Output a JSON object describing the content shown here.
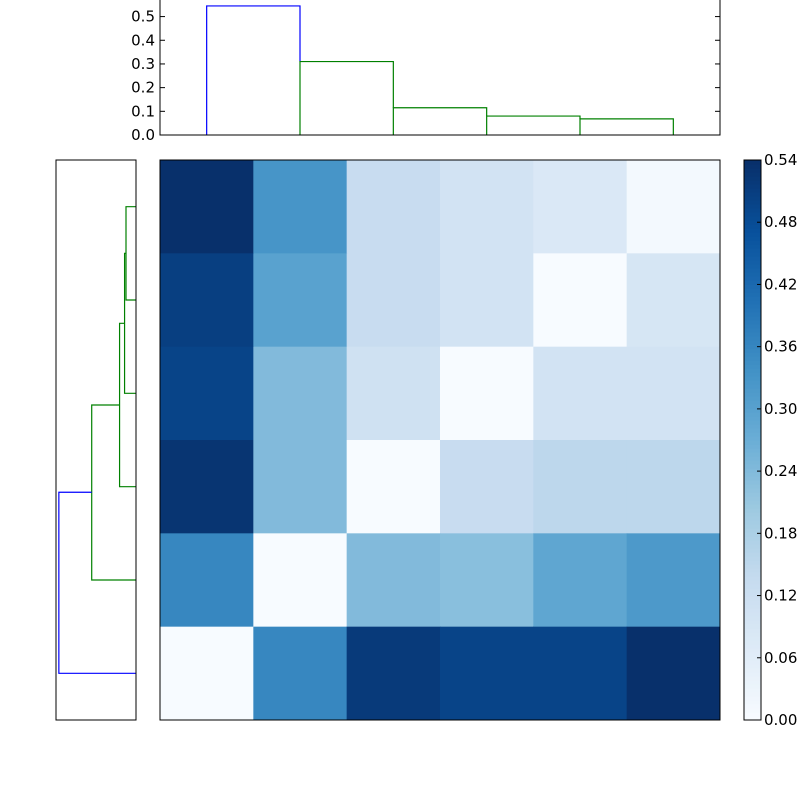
{
  "chart_data": {
    "type": "heatmap",
    "title": "",
    "xlabel": "",
    "ylabel": "",
    "colormap": "Blues",
    "vmin": 0.0,
    "vmax": 0.54,
    "matrix": [
      [
        0.54,
        0.33,
        0.13,
        0.1,
        0.08,
        0.01
      ],
      [
        0.51,
        0.3,
        0.13,
        0.1,
        0.0,
        0.09
      ],
      [
        0.5,
        0.24,
        0.11,
        0.0,
        0.1,
        0.1
      ],
      [
        0.53,
        0.24,
        0.0,
        0.13,
        0.15,
        0.15
      ],
      [
        0.36,
        0.0,
        0.24,
        0.23,
        0.29,
        0.32
      ],
      [
        0.0,
        0.36,
        0.52,
        0.5,
        0.5,
        0.54
      ]
    ],
    "colorbar": {
      "ticks": [
        0.0,
        0.06,
        0.12,
        0.18,
        0.24,
        0.3,
        0.36,
        0.42,
        0.48,
        0.54
      ],
      "tick_labels": [
        "0.00",
        "0.06",
        "0.12",
        "0.18",
        "0.24",
        "0.30",
        "0.36",
        "0.42",
        "0.48",
        "0.54"
      ]
    },
    "top_dendrogram": {
      "ylim": [
        0,
        0.57
      ],
      "yticks": [
        0.0,
        0.1,
        0.2,
        0.3,
        0.4,
        0.5
      ],
      "ytick_labels": [
        "0.0",
        "0.1",
        "0.2",
        "0.3",
        "0.4",
        "0.5"
      ],
      "links": [
        {
          "left": 0,
          "right": 1,
          "height": 0.545,
          "left_child_height": 0.0,
          "right_child_height": 0.31,
          "color": "#0000ff"
        },
        {
          "left": 1,
          "right": 2,
          "height": 0.31,
          "left_child_height": 0.0,
          "right_child_height": 0.115,
          "color": "#008000"
        },
        {
          "left": 2,
          "right": 3,
          "height": 0.115,
          "left_child_height": 0.0,
          "right_child_height": 0.08,
          "color": "#008000"
        },
        {
          "left": 3,
          "right": 4,
          "height": 0.08,
          "left_child_height": 0.0,
          "right_child_height": 0.068,
          "color": "#008000"
        },
        {
          "left": 4,
          "right": 5,
          "height": 0.068,
          "left_child_height": 0.0,
          "right_child_height": 0.0,
          "color": "#008000"
        }
      ]
    },
    "left_dendrogram": {
      "xlim": [
        0.56,
        0
      ],
      "links": [
        {
          "top": 0,
          "bottom": 1,
          "height": 0.07,
          "top_child_height": 0.0,
          "bottom_child_height": 0.0,
          "color": "#008000"
        },
        {
          "top": 0.5,
          "bottom": 2,
          "height": 0.08,
          "top_child_height": 0.07,
          "bottom_child_height": 0.0,
          "color": "#008000"
        },
        {
          "top": 1.25,
          "bottom": 3,
          "height": 0.115,
          "top_child_height": 0.08,
          "bottom_child_height": 0.0,
          "color": "#008000"
        },
        {
          "top": 2.125,
          "bottom": 4,
          "height": 0.31,
          "top_child_height": 0.115,
          "bottom_child_height": 0.0,
          "color": "#008000"
        },
        {
          "top": 3.06,
          "bottom": 5,
          "height": 0.54,
          "top_child_height": 0.31,
          "bottom_child_height": 0.0,
          "color": "#0000ff"
        }
      ]
    }
  }
}
